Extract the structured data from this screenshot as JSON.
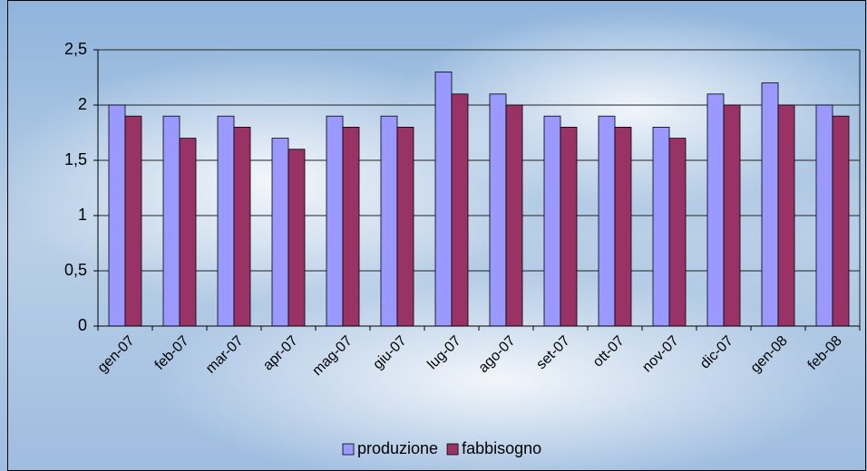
{
  "chart_data": {
    "type": "bar",
    "categories": [
      "gen-07",
      "feb-07",
      "mar-07",
      "apr-07",
      "mag-07",
      "giu-07",
      "lug-07",
      "ago-07",
      "set-07",
      "ott-07",
      "nov-07",
      "dic-07",
      "gen-08",
      "feb-08"
    ],
    "series": [
      {
        "name": "produzione",
        "color": "#9999ff",
        "values": [
          2.0,
          1.9,
          1.9,
          1.7,
          1.9,
          1.9,
          2.3,
          2.1,
          1.9,
          1.9,
          1.8,
          2.1,
          2.2,
          2.0
        ]
      },
      {
        "name": "fabbisogno",
        "color": "#993366",
        "values": [
          1.9,
          1.7,
          1.8,
          1.6,
          1.8,
          1.8,
          2.1,
          2.0,
          1.8,
          1.8,
          1.7,
          2.0,
          2.0,
          1.9
        ]
      }
    ],
    "ylim": [
      0,
      2.5
    ],
    "yticks": [
      0,
      {
        "value": 0.5,
        "label": "0,5"
      },
      1,
      {
        "value": 1.5,
        "label": "1,5"
      },
      2,
      {
        "value": 2.5,
        "label": "2,5"
      }
    ],
    "grid": true,
    "legend": "bottom"
  }
}
